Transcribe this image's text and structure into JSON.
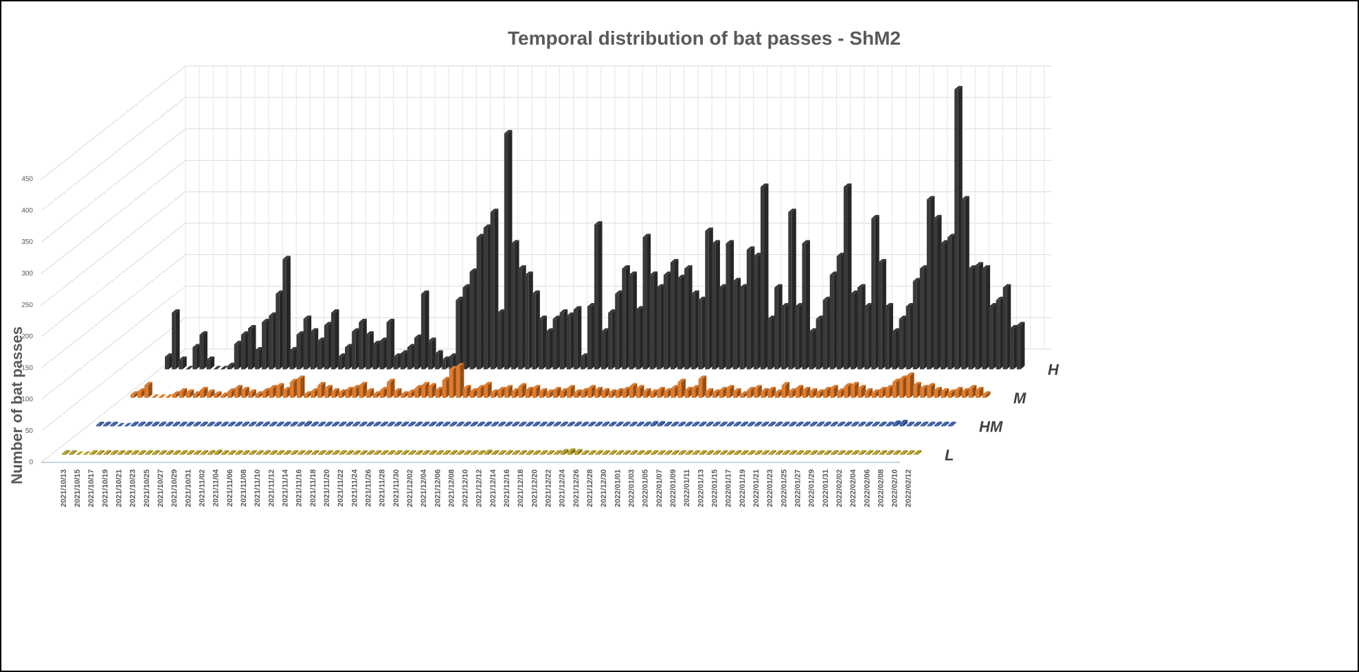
{
  "chart_data": {
    "type": "bar3d",
    "title": "Temporal distribution of bat passes - ShM2",
    "y_label": "Number of bat passes",
    "categories": [
      "2021/10/13",
      null,
      "2021/10/15",
      null,
      "2021/10/17",
      null,
      "2021/10/19",
      null,
      "2021/10/21",
      null,
      "2021/10/23",
      null,
      "2021/10/25",
      null,
      "2021/10/27",
      null,
      "2021/10/29",
      null,
      "2021/10/31",
      null,
      "2021/11/02",
      null,
      "2021/11/04",
      null,
      "2021/11/06",
      null,
      "2021/11/08",
      null,
      "2021/11/10",
      null,
      "2021/11/12",
      null,
      "2021/11/14",
      null,
      "2021/11/16",
      null,
      "2021/11/18",
      null,
      "2021/11/20",
      null,
      "2021/11/22",
      null,
      "2021/11/24",
      null,
      "2021/11/26",
      null,
      "2021/11/28",
      null,
      "2021/11/30",
      null,
      "2021/12/02",
      null,
      "2021/12/04",
      null,
      "2021/12/06",
      null,
      "2021/12/08",
      null,
      "2021/12/10",
      null,
      "2021/12/12",
      null,
      "2021/12/14",
      null,
      "2021/12/16",
      null,
      "2021/12/18",
      null,
      "2021/12/20",
      null,
      "2021/12/22",
      null,
      "2021/12/24",
      null,
      "2021/12/26",
      null,
      "2021/12/28",
      null,
      "2021/12/30",
      null,
      "2022/01/01",
      null,
      "2022/01/03",
      null,
      "2022/01/05",
      null,
      "2022/01/07",
      null,
      "2022/01/09",
      null,
      "2022/01/11",
      null,
      "2022/01/13",
      null,
      "2022/01/15",
      null,
      "2022/01/17",
      null,
      "2022/01/19",
      null,
      "2022/01/21",
      null,
      "2022/01/23",
      null,
      "2022/01/25",
      null,
      "2022/01/27",
      null,
      "2022/01/29",
      null,
      "2022/01/31",
      null,
      "2022/02/02",
      null,
      "2022/02/04",
      null,
      "2022/02/06",
      null,
      "2022/02/08",
      null,
      "2022/02/10",
      null,
      "2022/02/12",
      null
    ],
    "series": [
      {
        "name": "L",
        "color": "#b8a32c",
        "values": [
          2,
          2,
          0,
          0,
          2,
          2,
          2,
          2,
          2,
          2,
          2,
          2,
          2,
          2,
          2,
          2,
          2,
          2,
          2,
          2,
          2,
          2,
          3,
          2,
          2,
          2,
          2,
          2,
          2,
          2,
          2,
          2,
          2,
          2,
          2,
          2,
          2,
          2,
          2,
          2,
          2,
          2,
          2,
          2,
          2,
          2,
          2,
          2,
          2,
          2,
          2,
          2,
          2,
          2,
          2,
          2,
          2,
          2,
          2,
          2,
          2,
          3,
          2,
          2,
          2,
          2,
          2,
          2,
          2,
          2,
          2,
          2,
          4,
          5,
          4,
          2,
          2,
          2,
          2,
          2,
          2,
          2,
          2,
          2,
          2,
          2,
          2,
          2,
          2,
          2,
          2,
          2,
          2,
          2,
          2,
          2,
          2,
          2,
          2,
          2,
          2,
          2,
          2,
          2,
          2,
          2,
          2,
          2,
          2,
          2,
          2,
          2,
          2,
          2,
          2,
          2,
          2,
          2,
          2,
          2,
          2,
          2,
          2,
          2
        ]
      },
      {
        "name": "HM",
        "color": "#3e62ad",
        "values": [
          2,
          2,
          2,
          0,
          0,
          2,
          2,
          2,
          2,
          2,
          2,
          2,
          2,
          2,
          2,
          2,
          2,
          2,
          2,
          2,
          2,
          2,
          2,
          2,
          2,
          2,
          2,
          2,
          2,
          2,
          3,
          2,
          2,
          2,
          2,
          2,
          2,
          2,
          2,
          2,
          2,
          2,
          2,
          2,
          2,
          2,
          2,
          2,
          2,
          2,
          2,
          2,
          2,
          2,
          2,
          2,
          2,
          2,
          2,
          2,
          2,
          2,
          2,
          2,
          2,
          2,
          2,
          2,
          2,
          2,
          2,
          2,
          2,
          2,
          2,
          2,
          2,
          2,
          2,
          2,
          3,
          3,
          2,
          2,
          2,
          2,
          2,
          2,
          2,
          2,
          2,
          2,
          2,
          2,
          2,
          2,
          2,
          2,
          2,
          2,
          2,
          2,
          2,
          2,
          2,
          2,
          2,
          2,
          2,
          2,
          2,
          2,
          2,
          2,
          2,
          4,
          5,
          2,
          2,
          2,
          2,
          2,
          2,
          2
        ]
      },
      {
        "name": "M",
        "color": "#e07b2a",
        "values": [
          5,
          10,
          20,
          0,
          0,
          0,
          5,
          10,
          8,
          5,
          12,
          8,
          5,
          3,
          10,
          15,
          12,
          8,
          5,
          10,
          15,
          18,
          12,
          25,
          30,
          5,
          10,
          20,
          15,
          10,
          8,
          12,
          15,
          20,
          10,
          5,
          12,
          25,
          10,
          5,
          8,
          15,
          20,
          18,
          12,
          28,
          45,
          50,
          15,
          10,
          15,
          20,
          8,
          12,
          15,
          10,
          18,
          12,
          15,
          10,
          8,
          12,
          10,
          15,
          8,
          10,
          15,
          12,
          10,
          8,
          10,
          12,
          18,
          15,
          10,
          8,
          12,
          10,
          15,
          25,
          12,
          15,
          30,
          10,
          8,
          12,
          15,
          10,
          5,
          12,
          15,
          10,
          12,
          8,
          20,
          10,
          15,
          12,
          10,
          8,
          12,
          15,
          10,
          18,
          20,
          15,
          10,
          8,
          12,
          15,
          25,
          30,
          35,
          20,
          15,
          18,
          12,
          10,
          8,
          12,
          10,
          15,
          12,
          5
        ]
      },
      {
        "name": "H",
        "color": "#3a3a3a",
        "values": [
          20,
          90,
          15,
          0,
          35,
          55,
          15,
          0,
          0,
          5,
          40,
          55,
          65,
          30,
          75,
          85,
          120,
          175,
          30,
          55,
          80,
          60,
          45,
          70,
          90,
          20,
          35,
          60,
          75,
          55,
          40,
          45,
          75,
          20,
          25,
          35,
          50,
          120,
          45,
          25,
          15,
          20,
          110,
          130,
          155,
          210,
          225,
          250,
          90,
          375,
          200,
          160,
          150,
          120,
          80,
          60,
          80,
          90,
          85,
          95,
          20,
          100,
          230,
          60,
          90,
          120,
          160,
          150,
          95,
          210,
          150,
          130,
          150,
          170,
          145,
          160,
          120,
          110,
          220,
          200,
          130,
          200,
          140,
          130,
          190,
          180,
          290,
          80,
          130,
          100,
          250,
          100,
          200,
          60,
          80,
          110,
          150,
          180,
          290,
          120,
          130,
          100,
          240,
          170,
          100,
          60,
          80,
          100,
          140,
          160,
          270,
          240,
          200,
          210,
          445,
          270,
          160,
          165,
          160,
          100,
          110,
          130,
          65,
          70
        ]
      }
    ],
    "ylim": [
      0,
      450
    ],
    "yticks": [
      0,
      50,
      100,
      150,
      200,
      250,
      300,
      350,
      400,
      450
    ],
    "grid": true
  }
}
